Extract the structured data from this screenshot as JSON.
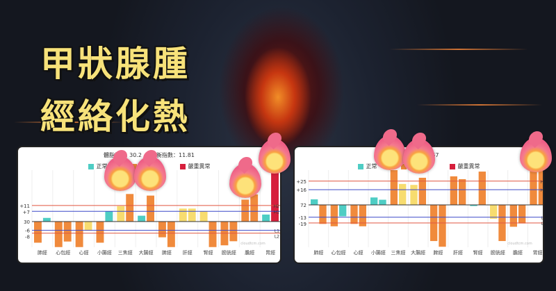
{
  "headline": {
    "line1": "甲狀腺腫",
    "line2": "經絡化熱"
  },
  "colors": {
    "normal": "#4ecdc4",
    "mild": "#f7dc6f",
    "moderate": "#f08a3c",
    "severe": "#d61f3c",
    "line_h2": "#e0553f",
    "line_h1": "#3c49c8"
  },
  "legend": [
    {
      "label": "正常",
      "level": "normal"
    },
    {
      "label": "度異常",
      "level": "moderate"
    },
    {
      "label": "嚴重異常",
      "level": "severe"
    }
  ],
  "chart_data": [
    {
      "type": "bar",
      "title": "體脂數 … 30.2 … 平衡指數：11.81",
      "baseline_label": "30",
      "thresholds": [
        {
          "value": 11,
          "label": "+11",
          "tag": "H2",
          "color": "line_h2"
        },
        {
          "value": 7,
          "label": "+7",
          "tag": "H1",
          "color": "line_h1"
        },
        {
          "value": -6,
          "label": "-6",
          "tag": "L1",
          "color": "line_h1"
        },
        {
          "value": -8,
          "label": "-8",
          "tag": "L2",
          "color": "line_h2"
        }
      ],
      "categories": [
        "肺經",
        "心包經",
        "心經",
        "小腸經",
        "三焦經",
        "大腸經",
        "脾經",
        "肝經",
        "腎經",
        "膀胱經",
        "膽經",
        "胃經"
      ],
      "bars": [
        [
          -14.5,
          "moderate"
        ],
        [
          2.5,
          "normal"
        ],
        [
          -17.5,
          "moderate"
        ],
        [
          -13.7,
          "moderate"
        ],
        [
          -17.5,
          "moderate"
        ],
        [
          -6.3,
          "mild"
        ],
        [
          -14.5,
          "moderate"
        ],
        [
          7,
          "normal"
        ],
        [
          10.6,
          "mild"
        ],
        [
          18.9,
          "moderate"
        ],
        [
          4,
          "normal"
        ],
        [
          17.8,
          "moderate"
        ],
        [
          -10.8,
          "moderate"
        ],
        [
          -17.5,
          "moderate"
        ],
        [
          8.9,
          "mild"
        ],
        [
          8.9,
          "mild"
        ],
        [
          7,
          "mild"
        ],
        [
          -17.5,
          "moderate"
        ],
        [
          -16.3,
          "moderate"
        ],
        [
          -13.5,
          "moderate"
        ],
        [
          15,
          "moderate"
        ],
        [
          18.6,
          "moderate"
        ],
        [
          4.8,
          "normal"
        ],
        [
          50,
          "severe"
        ]
      ],
      "watermark": "cloudtcm.com"
    },
    {
      "type": "bar",
      "title": "平衡指數：8.67",
      "baseline_label": "72",
      "thresholds": [
        {
          "value": 25,
          "label": "+25",
          "tag": "H2",
          "color": "line_h2"
        },
        {
          "value": 16,
          "label": "+16",
          "tag": "H1",
          "color": "line_h1"
        },
        {
          "value": -13,
          "label": "-13",
          "tag": "L1",
          "color": "line_h1"
        },
        {
          "value": -19,
          "label": "-19",
          "tag": "L2",
          "color": "line_h2"
        }
      ],
      "categories": [
        "肺經",
        "心包經",
        "心經",
        "小腸經",
        "三焦經",
        "大腸經",
        "脾經",
        "肝經",
        "腎經",
        "膀胱經",
        "膽經",
        "胃經"
      ],
      "bars": [
        [
          5.8,
          "normal"
        ],
        [
          -20,
          "moderate"
        ],
        [
          -22.5,
          "moderate"
        ],
        [
          -12,
          "normal"
        ],
        [
          -20,
          "moderate"
        ],
        [
          -22.5,
          "moderate"
        ],
        [
          7.8,
          "normal"
        ],
        [
          5.4,
          "normal"
        ],
        [
          37,
          "moderate"
        ],
        [
          22,
          "mild"
        ],
        [
          21,
          "mild"
        ],
        [
          28.5,
          "moderate"
        ],
        [
          -38,
          "moderate"
        ],
        [
          -44,
          "moderate"
        ],
        [
          30,
          "moderate"
        ],
        [
          27,
          "moderate"
        ],
        [
          -1.2,
          "normal"
        ],
        [
          35,
          "moderate"
        ],
        [
          -14.6,
          "mild"
        ],
        [
          -38,
          "moderate"
        ],
        [
          -23,
          "moderate"
        ],
        [
          -19.5,
          "moderate"
        ],
        [
          37,
          "moderate"
        ],
        [
          37,
          "moderate"
        ]
      ],
      "watermark": "cloudtcm.com"
    }
  ]
}
